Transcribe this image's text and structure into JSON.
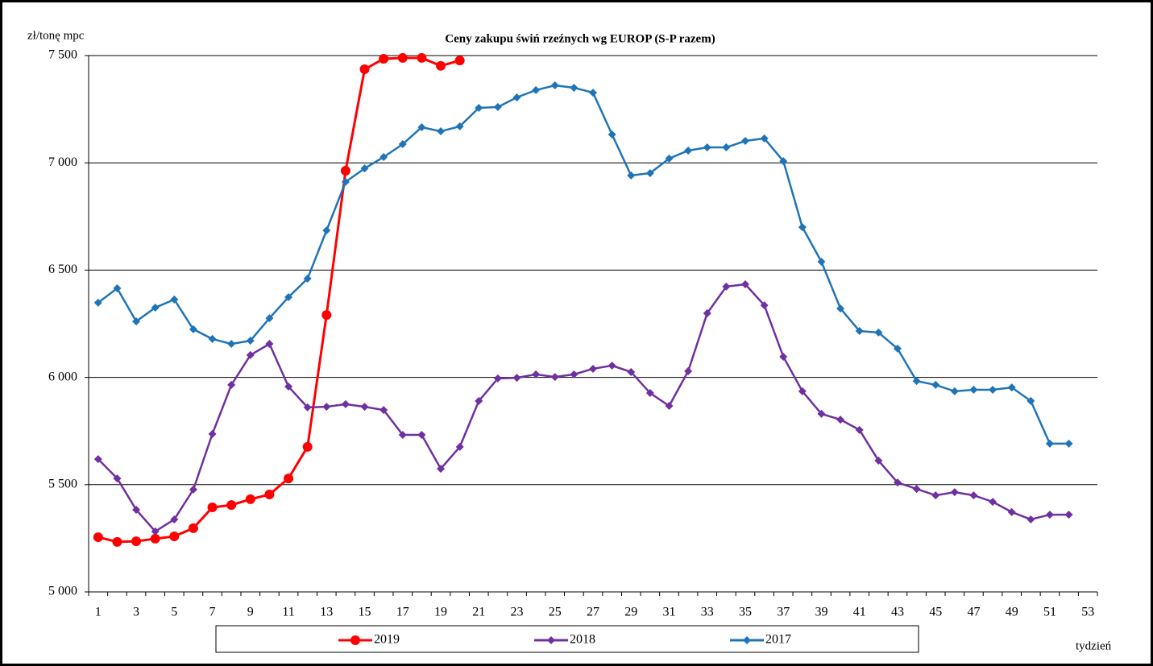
{
  "chart_data": {
    "type": "line",
    "title": "Ceny zakupu świń rzeźnych  wg EUROP (S-P razem)",
    "y_label": "zł/tonę  mpc",
    "x_label": "tydzień",
    "categories": [
      1,
      null,
      3,
      null,
      5,
      null,
      7,
      null,
      9,
      null,
      11,
      null,
      13,
      null,
      15,
      null,
      17,
      null,
      19,
      null,
      21,
      null,
      23,
      null,
      25,
      null,
      27,
      null,
      29,
      null,
      31,
      null,
      33,
      null,
      35,
      null,
      37,
      null,
      39,
      null,
      41,
      null,
      43,
      null,
      45,
      null,
      47,
      null,
      49,
      null,
      51,
      null,
      53
    ],
    "ylim": [
      5000,
      7500
    ],
    "yticks": [
      {
        "value": 5000,
        "label": "5 000"
      },
      {
        "value": 5500,
        "label": "5 500"
      },
      {
        "value": 6000,
        "label": "6 000"
      },
      {
        "value": 6500,
        "label": "6 500"
      },
      {
        "value": 7000,
        "label": "7 000"
      },
      {
        "value": 7500,
        "label": "7 500"
      }
    ],
    "grid": true,
    "series": [
      {
        "name": "2019",
        "color": "#ff0000",
        "marker": "circle",
        "values": [
          5255,
          5233,
          5236,
          5248,
          5259,
          5297,
          5394,
          5405,
          5432,
          5454,
          5529,
          5676,
          6291,
          6963,
          7436,
          7485,
          7489,
          7489,
          7452,
          7477,
          null,
          null,
          null,
          null,
          null,
          null,
          null,
          null,
          null,
          null,
          null,
          null,
          null,
          null,
          null,
          null,
          null,
          null,
          null,
          null,
          null,
          null,
          null,
          null,
          null,
          null,
          null,
          null,
          null,
          null,
          null,
          null,
          null
        ]
      },
      {
        "name": "2018",
        "color": "#7030a0",
        "marker": "diamond",
        "values": [
          5619,
          5529,
          5383,
          5282,
          5338,
          5477,
          5736,
          5965,
          6104,
          6156,
          5957,
          5860,
          5863,
          5875,
          5863,
          5848,
          5732,
          5732,
          5574,
          5676,
          5890,
          5995,
          5998,
          6014,
          6002,
          6014,
          6040,
          6055,
          6025,
          5927,
          5867,
          6029,
          6299,
          6423,
          6434,
          6336,
          6096,
          5935,
          5830,
          5803,
          5755,
          5612,
          5510,
          5480,
          5450,
          5465,
          5450,
          5420,
          5372,
          5338,
          5360,
          5360,
          null
        ]
      },
      {
        "name": "2017",
        "color": "#1f74b8",
        "marker": "diamond",
        "values": [
          6348,
          6415,
          6261,
          6325,
          6363,
          6224,
          6179,
          6156,
          6171,
          6276,
          6374,
          6460,
          6685,
          6911,
          6974,
          7027,
          7087,
          7166,
          7147,
          7170,
          7256,
          7260,
          7305,
          7339,
          7361,
          7350,
          7327,
          7132,
          6941,
          6952,
          7020,
          7057,
          7072,
          7072,
          7102,
          7114,
          7008,
          6700,
          6539,
          6321,
          6216,
          6209,
          6134,
          5983,
          5965,
          5935,
          5942,
          5942,
          5953,
          5890,
          5691,
          5691,
          null
        ]
      }
    ]
  }
}
